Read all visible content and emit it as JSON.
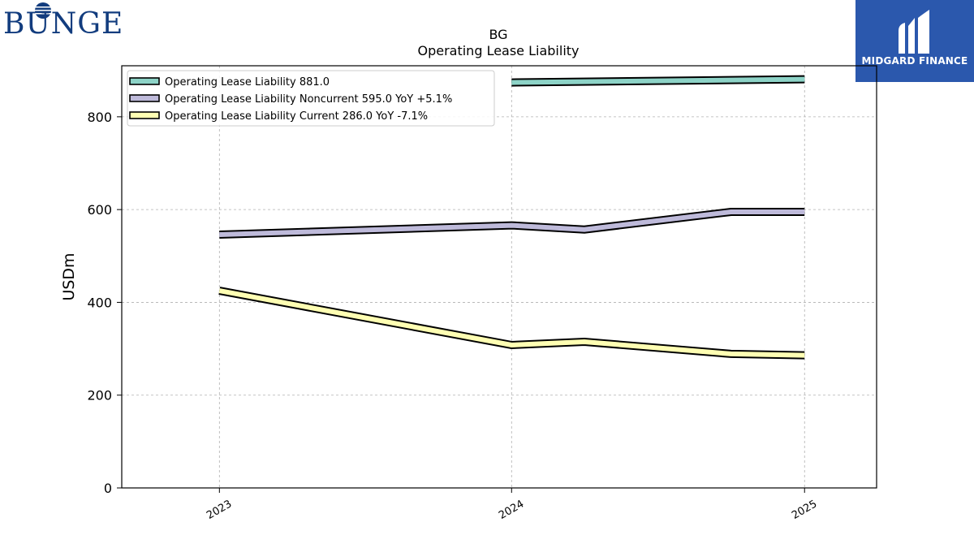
{
  "brand": {
    "left_logo": "BUNGE",
    "right_logo": "MIDGARD FINANCE"
  },
  "colors": {
    "total": "#8dd3c7",
    "noncurrent": "#bebada",
    "current": "#ffffb3",
    "brand_blue": "#123c7e",
    "brand_panel": "#2b58ad"
  },
  "chart_data": {
    "type": "line",
    "title": "BG",
    "subtitle": "Operating Lease Liability",
    "xlabel": "",
    "ylabel": "USDm",
    "ylim": [
      0,
      910
    ],
    "yticks": [
      0,
      200,
      400,
      600,
      800
    ],
    "xticks": [
      "2023",
      "2024",
      "2025"
    ],
    "grid": true,
    "legend_position": "top-left",
    "x": [
      "2023-01-01",
      "2024-01-01",
      "2024-04-01",
      "2024-10-01",
      "2025-01-01"
    ],
    "series": [
      {
        "name": "Operating Lease Liability  881.0",
        "key": "total",
        "values": [
          null,
          874,
          null,
          null,
          881
        ]
      },
      {
        "name": "Operating Lease Liability Noncurrent  595.0 YoY +5.1%",
        "key": "noncurrent",
        "values": [
          546,
          566,
          557,
          595,
          595
        ]
      },
      {
        "name": "Operating Lease Liability Current  286.0 YoY -7.1%",
        "key": "current",
        "values": [
          425,
          308,
          315,
          289,
          286
        ]
      }
    ]
  }
}
